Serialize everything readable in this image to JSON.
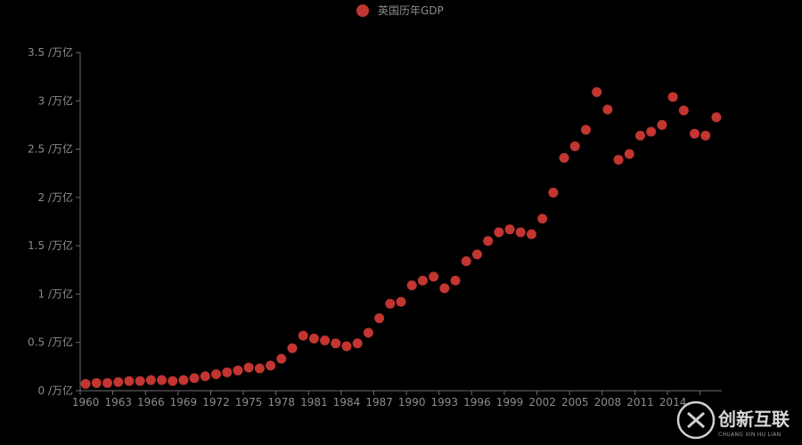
{
  "chart_data": {
    "type": "scatter",
    "legend": {
      "label": "英国历年GDP",
      "position": "top-center"
    },
    "series": [
      {
        "name": "英国历年GDP",
        "color": "#c23531",
        "x": [
          1960,
          1961,
          1962,
          1963,
          1964,
          1965,
          1966,
          1967,
          1968,
          1969,
          1970,
          1971,
          1972,
          1973,
          1974,
          1975,
          1976,
          1977,
          1978,
          1979,
          1980,
          1981,
          1982,
          1983,
          1984,
          1985,
          1986,
          1987,
          1988,
          1989,
          1990,
          1991,
          1992,
          1993,
          1994,
          1995,
          1996,
          1997,
          1998,
          1999,
          2000,
          2001,
          2002,
          2003,
          2004,
          2005,
          2006,
          2007,
          2008,
          2009,
          2010,
          2011,
          2012,
          2013,
          2014,
          2015,
          2016,
          2017,
          2018
        ],
        "values": [
          0.07,
          0.08,
          0.08,
          0.09,
          0.1,
          0.1,
          0.11,
          0.11,
          0.1,
          0.11,
          0.13,
          0.15,
          0.17,
          0.19,
          0.21,
          0.24,
          0.23,
          0.26,
          0.33,
          0.44,
          0.57,
          0.54,
          0.52,
          0.49,
          0.46,
          0.49,
          0.6,
          0.75,
          0.9,
          0.92,
          1.09,
          1.14,
          1.18,
          1.06,
          1.14,
          1.34,
          1.41,
          1.55,
          1.64,
          1.67,
          1.64,
          1.62,
          1.78,
          2.05,
          2.41,
          2.53,
          2.7,
          3.09,
          2.91,
          2.39,
          2.45,
          2.64,
          2.68,
          2.75,
          3.04,
          2.9,
          2.66,
          2.64,
          2.83
        ]
      }
    ],
    "x_tick_labels": [
      "1960",
      "1963",
      "1966",
      "1969",
      "1972",
      "1975",
      "1978",
      "1981",
      "1984",
      "1987",
      "1990",
      "1993",
      "1996",
      "1999",
      "2002",
      "2005",
      "2008",
      "2011",
      "2014"
    ],
    "y_tick_labels": [
      "0 /万亿",
      "0.5 /万亿",
      "1 /万亿",
      "1.5 /万亿",
      "2 /万亿",
      "2.5 /万亿",
      "3 /万亿",
      "3.5 /万亿"
    ],
    "ylim": [
      0,
      3.5
    ],
    "xlim": [
      1960,
      2018
    ],
    "grid": false
  },
  "watermark": {
    "text": "创新互联",
    "subtext": "CHUANG XIN HU LIAN"
  }
}
